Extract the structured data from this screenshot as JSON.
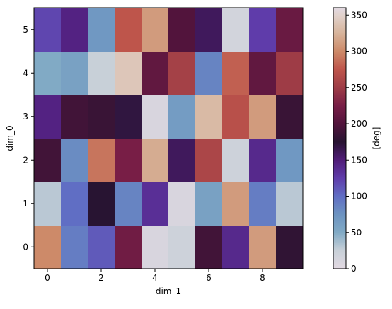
{
  "chart_data": {
    "type": "heatmap",
    "xlabel": "dim_1",
    "ylabel": "dim_0",
    "x_ticks": [
      0,
      2,
      4,
      6,
      8
    ],
    "y_ticks": [
      0,
      1,
      2,
      3,
      4,
      5
    ],
    "x_categories": [
      0,
      1,
      2,
      3,
      4,
      5,
      6,
      7,
      8,
      9
    ],
    "y_categories": [
      0,
      1,
      2,
      3,
      4,
      5
    ],
    "colormap": "twilight",
    "colorbar": {
      "label": "[deg]",
      "range": [
        0,
        360
      ],
      "ticks": [
        0,
        50,
        100,
        150,
        200,
        250,
        300,
        350
      ]
    },
    "values": [
      [
        300,
        90,
        110,
        220,
        10,
        20,
        190,
        140,
        310,
        180
      ],
      [
        30,
        100,
        175,
        85,
        135,
        10,
        60,
        310,
        90,
        30
      ],
      [
        190,
        80,
        290,
        225,
        320,
        160,
        260,
        20,
        140,
        70
      ],
      [
        145,
        190,
        185,
        170,
        10,
        65,
        330,
        270,
        310,
        185
      ],
      [
        50,
        60,
        25,
        340,
        210,
        255,
        85,
        280,
        210,
        250
      ],
      [
        120,
        145,
        70,
        275,
        310,
        200,
        160,
        15,
        125,
        215
      ]
    ],
    "grid": false
  }
}
